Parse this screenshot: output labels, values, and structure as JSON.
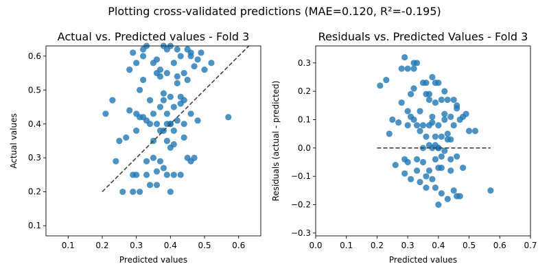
{
  "figure": {
    "title": "Plotting cross-validated predictions (MAE=0.120, R²=-0.195)"
  },
  "colors": {
    "points": "#1f77b4",
    "reference_line": "#404040",
    "axes": "#000000",
    "background": "#ffffff"
  },
  "chart_data": [
    {
      "type": "scatter",
      "title": "Actual vs. Predicted values - Fold 3",
      "xlabel": "Predicted values",
      "ylabel": "Actual values",
      "xlim": [
        0.035,
        0.665
      ],
      "ylim": [
        0.07,
        0.63
      ],
      "xticks": [
        "0.1",
        "0.2",
        "0.3",
        "0.4",
        "0.5",
        "0.6"
      ],
      "yticks": [
        "0.1",
        "0.2",
        "0.3",
        "0.4",
        "0.5",
        "0.6"
      ],
      "grid": false,
      "reference_line": {
        "style": "dashed",
        "x": [
          0.2,
          0.63
        ],
        "y": [
          0.2,
          0.63
        ]
      },
      "points": {
        "x": [
          0.21,
          0.23,
          0.24,
          0.25,
          0.26,
          0.27,
          0.28,
          0.28,
          0.29,
          0.29,
          0.29,
          0.3,
          0.3,
          0.3,
          0.31,
          0.31,
          0.31,
          0.32,
          0.32,
          0.32,
          0.33,
          0.33,
          0.33,
          0.34,
          0.34,
          0.34,
          0.35,
          0.35,
          0.35,
          0.36,
          0.36,
          0.36,
          0.36,
          0.37,
          0.37,
          0.37,
          0.37,
          0.38,
          0.38,
          0.38,
          0.38,
          0.39,
          0.39,
          0.39,
          0.39,
          0.39,
          0.4,
          0.4,
          0.4,
          0.4,
          0.4,
          0.41,
          0.41,
          0.41,
          0.41,
          0.42,
          0.42,
          0.42,
          0.43,
          0.43,
          0.43,
          0.44,
          0.44,
          0.44,
          0.45,
          0.45,
          0.45,
          0.46,
          0.46,
          0.46,
          0.47,
          0.47,
          0.48,
          0.48,
          0.49,
          0.5,
          0.52,
          0.57,
          0.33,
          0.35,
          0.37,
          0.4,
          0.42,
          0.44,
          0.46,
          0.38,
          0.36,
          0.32,
          0.3,
          0.39,
          0.41,
          0.43
        ],
        "y": [
          0.43,
          0.47,
          0.29,
          0.35,
          0.2,
          0.36,
          0.56,
          0.44,
          0.61,
          0.2,
          0.25,
          0.58,
          0.43,
          0.25,
          0.5,
          0.42,
          0.2,
          0.6,
          0.53,
          0.42,
          0.41,
          0.29,
          0.25,
          0.47,
          0.4,
          0.22,
          0.58,
          0.43,
          0.3,
          0.55,
          0.4,
          0.26,
          0.22,
          0.56,
          0.45,
          0.38,
          0.29,
          0.63,
          0.49,
          0.38,
          0.27,
          0.62,
          0.55,
          0.43,
          0.35,
          0.25,
          0.63,
          0.48,
          0.4,
          0.33,
          0.2,
          0.58,
          0.45,
          0.38,
          0.25,
          0.62,
          0.54,
          0.41,
          0.6,
          0.46,
          0.25,
          0.55,
          0.47,
          0.4,
          0.62,
          0.53,
          0.3,
          0.6,
          0.43,
          0.29,
          0.57,
          0.3,
          0.59,
          0.41,
          0.61,
          0.56,
          0.58,
          0.42,
          0.63,
          0.35,
          0.54,
          0.4,
          0.52,
          0.36,
          0.61,
          0.47,
          0.59,
          0.62,
          0.38,
          0.4,
          0.34,
          0.48
        ]
      }
    },
    {
      "type": "scatter",
      "title": "Residuals vs. Predicted Values - Fold 3",
      "xlabel": "Predicted values",
      "ylabel": "Residuals (actual - predicted)",
      "xlim": [
        0.0,
        0.7
      ],
      "ylim": [
        -0.31,
        0.36
      ],
      "xticks": [
        "0.0",
        "0.1",
        "0.2",
        "0.3",
        "0.4",
        "0.5",
        "0.6",
        "0.7"
      ],
      "yticks": [
        "−0.3",
        "−0.2",
        "−0.1",
        "0.0",
        "0.1",
        "0.2",
        "0.3"
      ],
      "grid": false,
      "reference_line": {
        "style": "dashed",
        "x": [
          0.2,
          0.57
        ],
        "y": [
          0.0,
          0.0
        ]
      },
      "points": {
        "x": [
          0.21,
          0.23,
          0.24,
          0.25,
          0.26,
          0.27,
          0.28,
          0.28,
          0.29,
          0.29,
          0.29,
          0.3,
          0.3,
          0.3,
          0.31,
          0.31,
          0.31,
          0.32,
          0.32,
          0.32,
          0.33,
          0.33,
          0.33,
          0.34,
          0.34,
          0.34,
          0.35,
          0.35,
          0.35,
          0.36,
          0.36,
          0.36,
          0.36,
          0.37,
          0.37,
          0.37,
          0.37,
          0.38,
          0.38,
          0.38,
          0.38,
          0.39,
          0.39,
          0.39,
          0.39,
          0.39,
          0.4,
          0.4,
          0.4,
          0.4,
          0.4,
          0.41,
          0.41,
          0.41,
          0.41,
          0.42,
          0.42,
          0.42,
          0.43,
          0.43,
          0.43,
          0.44,
          0.44,
          0.44,
          0.45,
          0.45,
          0.45,
          0.46,
          0.46,
          0.46,
          0.47,
          0.47,
          0.48,
          0.48,
          0.49,
          0.5,
          0.52,
          0.57,
          0.33,
          0.35,
          0.37,
          0.4,
          0.42,
          0.44,
          0.46,
          0.38,
          0.36,
          0.32,
          0.3,
          0.39,
          0.41,
          0.43
        ],
        "y": [
          0.22,
          0.24,
          0.05,
          0.1,
          -0.06,
          0.09,
          0.28,
          0.16,
          0.32,
          -0.09,
          -0.04,
          0.28,
          0.13,
          -0.05,
          0.19,
          0.11,
          -0.11,
          0.28,
          0.21,
          0.1,
          0.08,
          -0.04,
          -0.08,
          0.13,
          0.06,
          -0.12,
          0.23,
          0.08,
          -0.05,
          0.19,
          0.04,
          -0.1,
          -0.14,
          0.19,
          0.08,
          0.01,
          -0.08,
          0.25,
          0.11,
          0.0,
          -0.11,
          0.23,
          0.16,
          0.04,
          -0.04,
          -0.14,
          0.23,
          0.08,
          0.0,
          -0.07,
          -0.2,
          0.17,
          0.04,
          -0.03,
          -0.16,
          0.2,
          0.12,
          -0.01,
          0.17,
          0.03,
          -0.18,
          0.11,
          0.03,
          -0.04,
          0.17,
          0.08,
          -0.15,
          0.14,
          -0.03,
          -0.17,
          0.1,
          -0.17,
          0.11,
          -0.07,
          0.12,
          0.06,
          0.06,
          -0.15,
          0.3,
          0.0,
          0.17,
          0.0,
          0.1,
          -0.08,
          0.15,
          0.09,
          0.23,
          0.3,
          0.08,
          0.01,
          -0.07,
          0.05
        ]
      }
    }
  ]
}
